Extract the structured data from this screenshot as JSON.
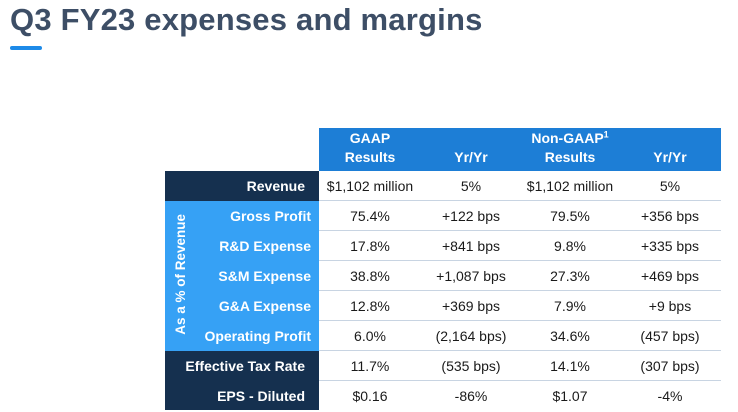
{
  "title": "Q3 FY23 expenses and margins",
  "table": {
    "header": {
      "gaap_line1": "GAAP",
      "gaap_line2": "Results",
      "gaap_yoy": "Yr/Yr",
      "nongaap_line1": "Non-GAAP",
      "nongaap_footnote": "1",
      "nongaap_line2": "Results",
      "nongaap_yoy": "Yr/Yr"
    },
    "vertical_label": "As a % of Revenue",
    "rows": [
      {
        "label": "Revenue",
        "gaap": "$1,102 million",
        "gaap_yoy": "5%",
        "nongaap": "$1,102 million",
        "nongaap_yoy": "5%"
      },
      {
        "label": "Gross Profit",
        "gaap": "75.4%",
        "gaap_yoy": "+122 bps",
        "nongaap": "79.5%",
        "nongaap_yoy": "+356 bps"
      },
      {
        "label": "R&D Expense",
        "gaap": "17.8%",
        "gaap_yoy": "+841 bps",
        "nongaap": "9.8%",
        "nongaap_yoy": "+335 bps"
      },
      {
        "label": "S&M Expense",
        "gaap": "38.8%",
        "gaap_yoy": "+1,087 bps",
        "nongaap": "27.3%",
        "nongaap_yoy": "+469 bps"
      },
      {
        "label": "G&A Expense",
        "gaap": "12.8%",
        "gaap_yoy": "+369 bps",
        "nongaap": "7.9%",
        "nongaap_yoy": "+9 bps"
      },
      {
        "label": "Operating Profit",
        "gaap": "6.0%",
        "gaap_yoy": "(2,164 bps)",
        "nongaap": "34.6%",
        "nongaap_yoy": "(457 bps)"
      },
      {
        "label": "Effective Tax Rate",
        "gaap": "11.7%",
        "gaap_yoy": "(535 bps)",
        "nongaap": "14.1%",
        "nongaap_yoy": "(307 bps)"
      },
      {
        "label": "EPS - Diluted",
        "gaap": "$0.16",
        "gaap_yoy": "-86%",
        "nongaap": "$1.07",
        "nongaap_yoy": "-4%"
      }
    ]
  }
}
